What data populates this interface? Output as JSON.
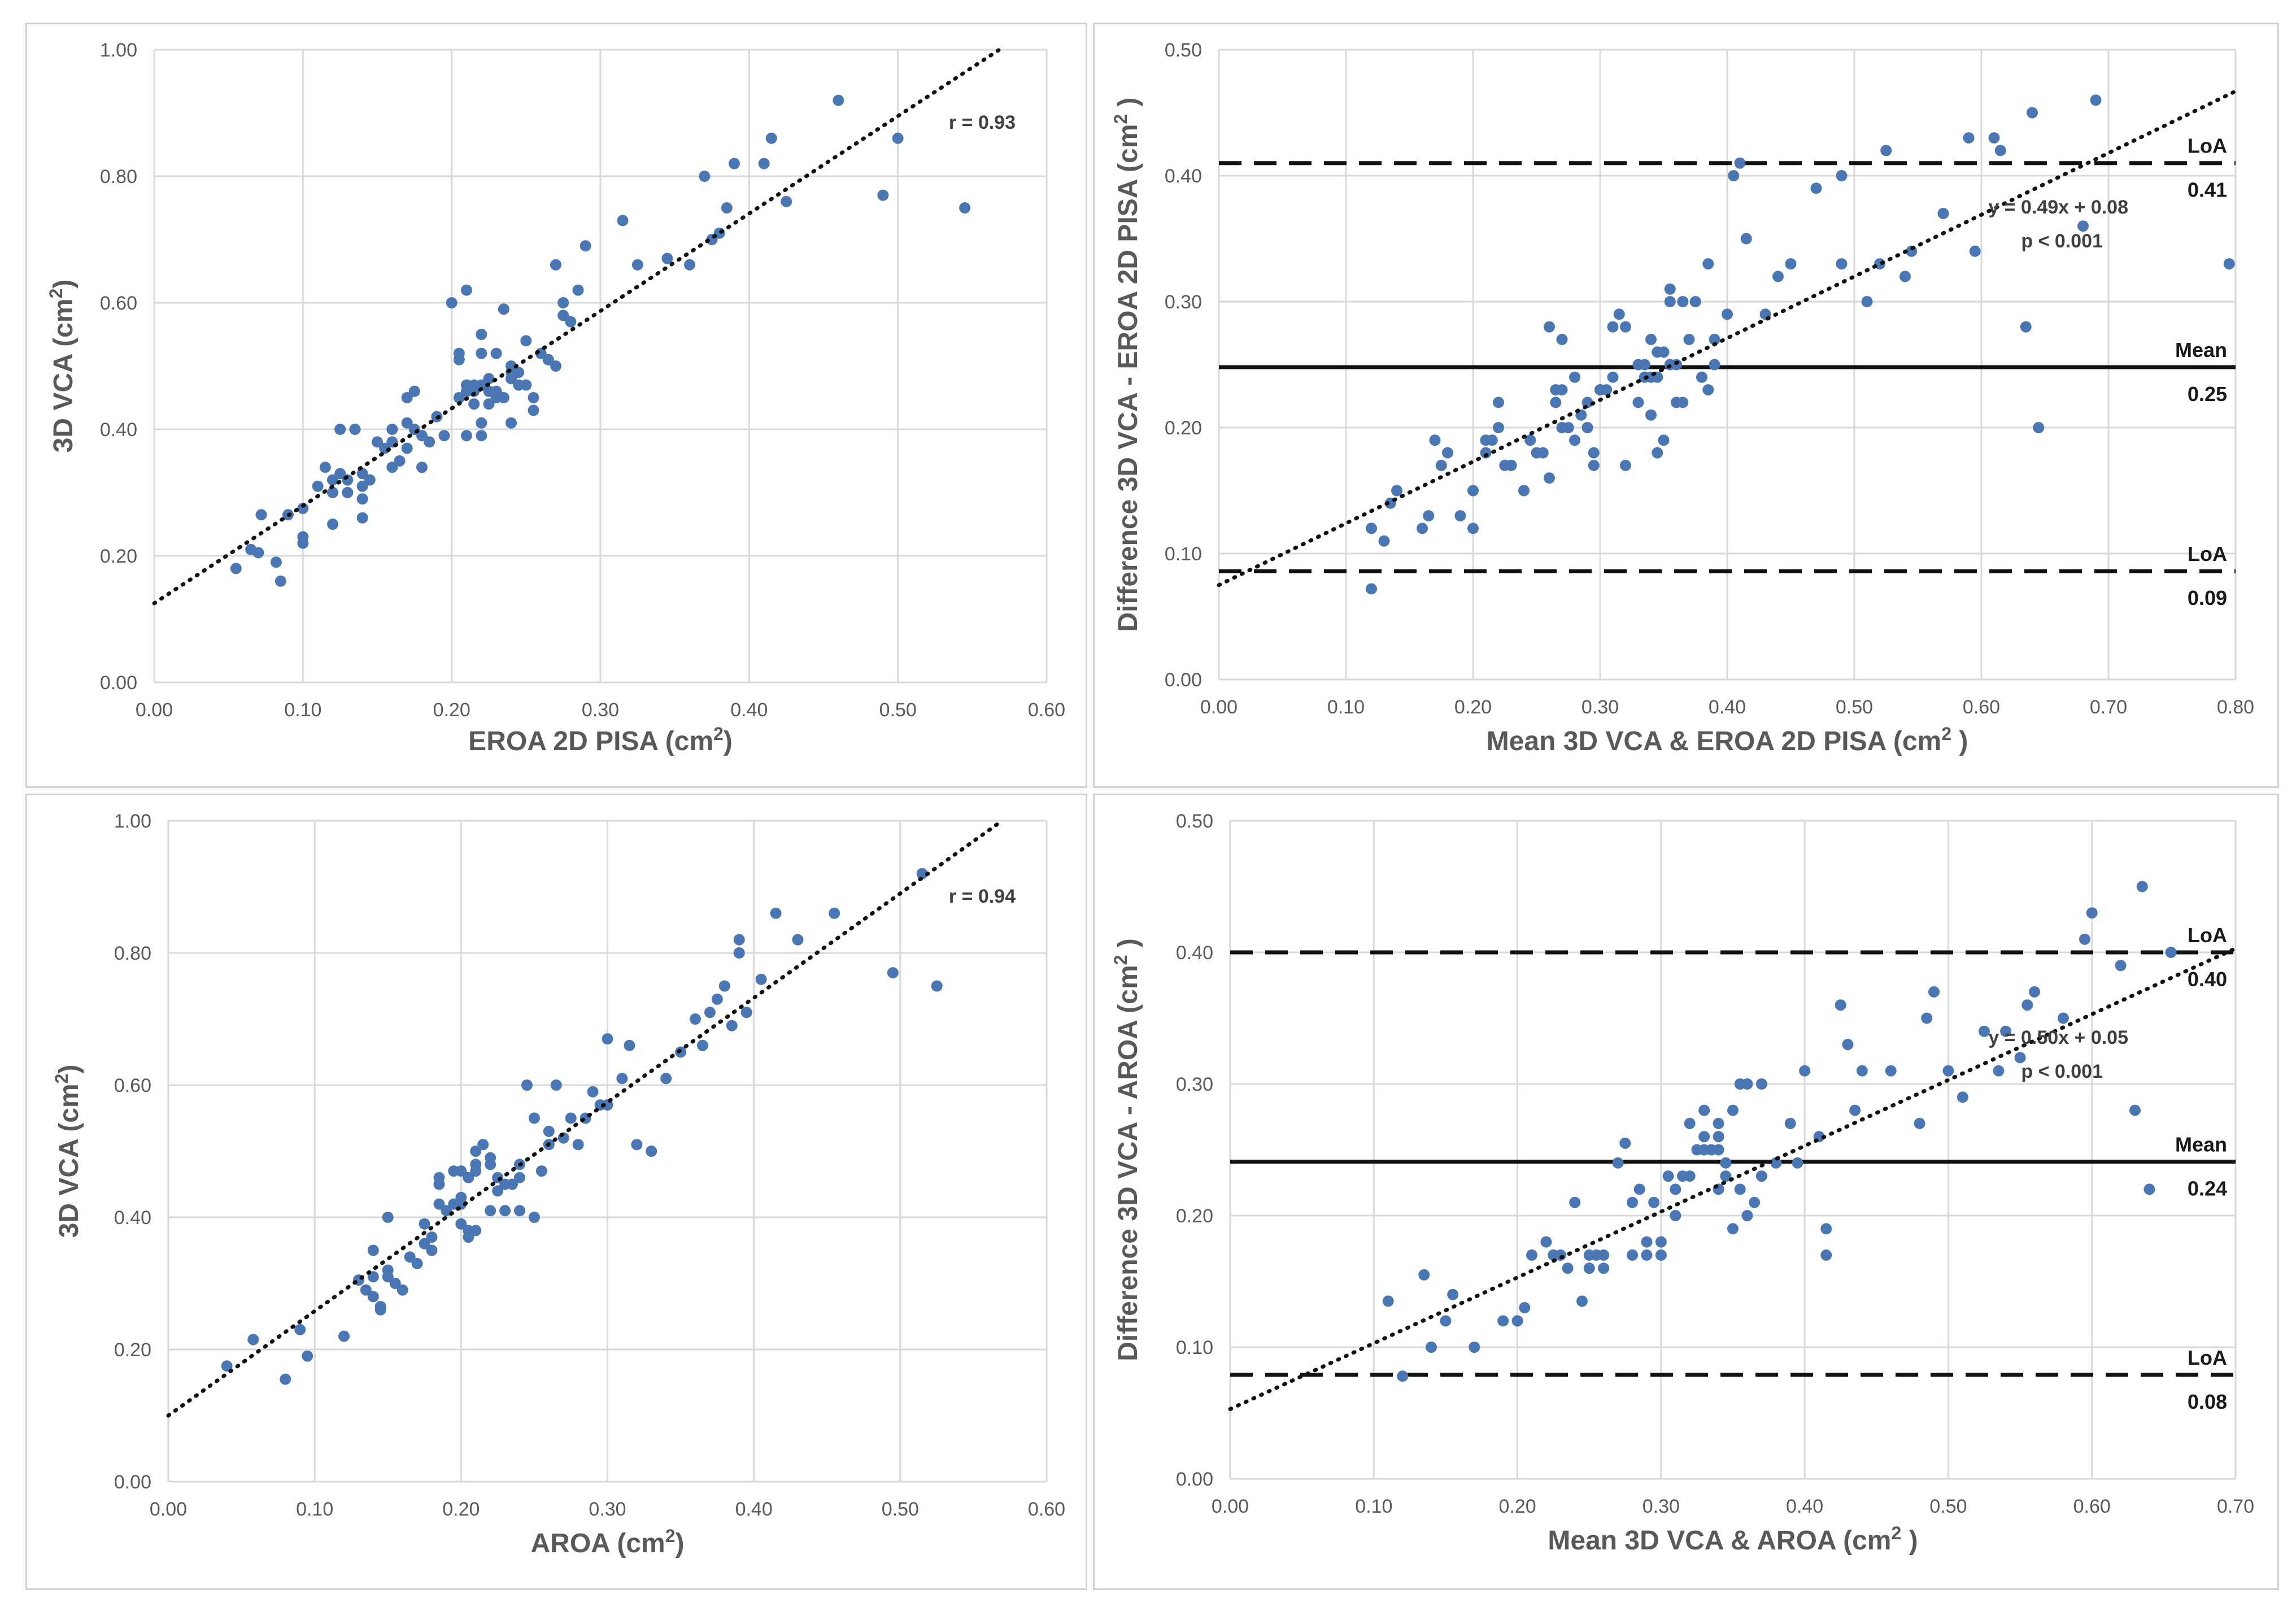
{
  "chart_data": [
    {
      "type": "scatter",
      "id": "p1",
      "xlabel": "EROA 2D PISA (cm",
      "ylabel": "3D VCA (cm",
      "unit_sup": "2",
      "unit_close": ")",
      "xlim": [
        0,
        0.6
      ],
      "ylim": [
        0,
        1.0
      ],
      "xticks": [
        "0.00",
        "0.10",
        "0.20",
        "0.30",
        "0.40",
        "0.50",
        "0.60"
      ],
      "yticks": [
        "0.00",
        "0.20",
        "0.40",
        "0.60",
        "0.80",
        "1.00"
      ],
      "annotation": "r = 0.93",
      "trendline": {
        "intercept": 0.125,
        "slope": 1.54
      },
      "x": [
        0.055,
        0.065,
        0.07,
        0.072,
        0.082,
        0.085,
        0.09,
        0.1,
        0.1,
        0.1,
        0.115,
        0.12,
        0.12,
        0.125,
        0.13,
        0.135,
        0.14,
        0.14,
        0.14,
        0.14,
        0.145,
        0.15,
        0.155,
        0.16,
        0.16,
        0.165,
        0.17,
        0.17,
        0.175,
        0.175,
        0.18,
        0.18,
        0.19,
        0.2,
        0.205,
        0.205,
        0.21,
        0.21,
        0.21,
        0.21,
        0.215,
        0.215,
        0.22,
        0.22,
        0.22,
        0.22,
        0.225,
        0.225,
        0.23,
        0.23,
        0.235,
        0.235,
        0.24,
        0.24,
        0.245,
        0.25,
        0.25,
        0.255,
        0.26,
        0.265,
        0.27,
        0.27,
        0.275,
        0.28,
        0.285,
        0.29,
        0.315,
        0.325,
        0.345,
        0.36,
        0.37,
        0.375,
        0.38,
        0.385,
        0.39,
        0.41,
        0.415,
        0.425,
        0.46,
        0.49,
        0.5,
        0.545,
        0.215,
        0.225,
        0.245,
        0.23,
        0.24,
        0.205,
        0.265,
        0.275,
        0.185,
        0.17,
        0.16,
        0.13,
        0.125,
        0.12,
        0.11,
        0.22,
        0.255,
        0.21,
        0.195,
        0.24
      ],
      "y": [
        0.18,
        0.21,
        0.205,
        0.265,
        0.19,
        0.16,
        0.265,
        0.22,
        0.275,
        0.23,
        0.34,
        0.25,
        0.3,
        0.4,
        0.3,
        0.4,
        0.26,
        0.31,
        0.29,
        0.33,
        0.32,
        0.38,
        0.37,
        0.34,
        0.4,
        0.35,
        0.37,
        0.45,
        0.46,
        0.4,
        0.39,
        0.34,
        0.42,
        0.6,
        0.51,
        0.45,
        0.62,
        0.47,
        0.46,
        0.39,
        0.44,
        0.47,
        0.52,
        0.47,
        0.41,
        0.55,
        0.44,
        0.48,
        0.52,
        0.45,
        0.45,
        0.59,
        0.41,
        0.5,
        0.49,
        0.54,
        0.47,
        0.43,
        0.52,
        0.51,
        0.66,
        0.5,
        0.6,
        0.57,
        0.62,
        0.69,
        0.73,
        0.66,
        0.67,
        0.66,
        0.8,
        0.7,
        0.71,
        0.75,
        0.82,
        0.82,
        0.86,
        0.76,
        0.92,
        0.77,
        0.86,
        0.75,
        0.46,
        0.46,
        0.47,
        0.46,
        0.48,
        0.52,
        0.51,
        0.58,
        0.38,
        0.41,
        0.38,
        0.32,
        0.33,
        0.32,
        0.31,
        0.39,
        0.45,
        0.47,
        0.39,
        0.49
      ]
    },
    {
      "type": "scatter",
      "id": "p2",
      "xlabel": "Mean 3D VCA & EROA 2D PISA (cm",
      "ylabel": "Difference 3D VCA - EROA 2D PISA (cm",
      "unit_sup": "2",
      "unit_close": " )",
      "xlim": [
        0,
        0.8
      ],
      "ylim": [
        0,
        0.5
      ],
      "xticks": [
        "0.00",
        "0.10",
        "0.20",
        "0.30",
        "0.40",
        "0.50",
        "0.60",
        "0.70",
        "0.80"
      ],
      "yticks": [
        "0.00",
        "0.10",
        "0.20",
        "0.30",
        "0.40",
        "0.50"
      ],
      "annotation": "y = 0.49x + 0.08",
      "annotation2": "p < 0.001",
      "trendline": {
        "intercept": 0.075,
        "slope": 0.49
      },
      "lines": [
        {
          "name": "LoA",
          "value": 0.41,
          "label": "0.41",
          "style": "dashed"
        },
        {
          "name": "Mean",
          "value": 0.248,
          "label": "0.25",
          "style": "solid"
        },
        {
          "name": "LoA",
          "value": 0.086,
          "label": "0.09",
          "style": "dashed"
        }
      ],
      "x": [
        0.12,
        0.13,
        0.135,
        0.14,
        0.16,
        0.17,
        0.18,
        0.19,
        0.2,
        0.21,
        0.21,
        0.22,
        0.22,
        0.225,
        0.23,
        0.24,
        0.25,
        0.255,
        0.26,
        0.265,
        0.27,
        0.27,
        0.275,
        0.28,
        0.285,
        0.29,
        0.29,
        0.295,
        0.3,
        0.305,
        0.31,
        0.315,
        0.32,
        0.33,
        0.33,
        0.335,
        0.34,
        0.34,
        0.34,
        0.345,
        0.345,
        0.35,
        0.35,
        0.355,
        0.355,
        0.36,
        0.36,
        0.365,
        0.37,
        0.375,
        0.38,
        0.385,
        0.39,
        0.39,
        0.4,
        0.405,
        0.41,
        0.415,
        0.43,
        0.44,
        0.45,
        0.47,
        0.49,
        0.49,
        0.51,
        0.52,
        0.525,
        0.54,
        0.545,
        0.57,
        0.59,
        0.595,
        0.61,
        0.615,
        0.635,
        0.64,
        0.645,
        0.68,
        0.69,
        0.795,
        0.12,
        0.165,
        0.175,
        0.2,
        0.215,
        0.23,
        0.245,
        0.26,
        0.265,
        0.28,
        0.295,
        0.31,
        0.32,
        0.335,
        0.345,
        0.355,
        0.365,
        0.385,
        0.27,
        0.3
      ],
      "y": [
        0.072,
        0.11,
        0.14,
        0.15,
        0.12,
        0.19,
        0.18,
        0.13,
        0.12,
        0.19,
        0.18,
        0.22,
        0.2,
        0.17,
        0.17,
        0.15,
        0.18,
        0.18,
        0.28,
        0.22,
        0.27,
        0.23,
        0.2,
        0.24,
        0.21,
        0.2,
        0.22,
        0.18,
        0.23,
        0.23,
        0.28,
        0.29,
        0.17,
        0.25,
        0.22,
        0.25,
        0.24,
        0.21,
        0.27,
        0.18,
        0.24,
        0.19,
        0.26,
        0.31,
        0.3,
        0.22,
        0.25,
        0.3,
        0.27,
        0.3,
        0.24,
        0.33,
        0.25,
        0.27,
        0.29,
        0.4,
        0.41,
        0.35,
        0.29,
        0.32,
        0.33,
        0.39,
        0.4,
        0.33,
        0.3,
        0.33,
        0.42,
        0.32,
        0.34,
        0.37,
        0.43,
        0.34,
        0.43,
        0.42,
        0.28,
        0.45,
        0.2,
        0.36,
        0.46,
        0.33,
        0.12,
        0.13,
        0.17,
        0.15,
        0.19,
        0.17,
        0.19,
        0.16,
        0.23,
        0.19,
        0.17,
        0.24,
        0.28,
        0.24,
        0.26,
        0.25,
        0.22,
        0.23,
        0.2,
        0.23
      ]
    },
    {
      "type": "scatter",
      "id": "p3",
      "xlabel": "AROA (cm",
      "ylabel": "3D VCA (cm",
      "unit_sup": "2",
      "unit_close": ")",
      "xlim": [
        0,
        0.6
      ],
      "ylim": [
        0,
        1.0
      ],
      "xticks": [
        "0.00",
        "0.10",
        "0.20",
        "0.30",
        "0.40",
        "0.50",
        "0.60"
      ],
      "yticks": [
        "0.00",
        "0.20",
        "0.40",
        "0.60",
        "0.80",
        "1.00"
      ],
      "annotation": "r = 0.94",
      "trendline": {
        "intercept": 0.1,
        "slope": 1.58
      },
      "x": [
        0.04,
        0.058,
        0.08,
        0.09,
        0.095,
        0.12,
        0.13,
        0.14,
        0.14,
        0.145,
        0.145,
        0.15,
        0.15,
        0.155,
        0.16,
        0.165,
        0.175,
        0.175,
        0.18,
        0.185,
        0.185,
        0.19,
        0.195,
        0.2,
        0.2,
        0.205,
        0.205,
        0.21,
        0.21,
        0.215,
        0.22,
        0.22,
        0.225,
        0.23,
        0.235,
        0.24,
        0.24,
        0.245,
        0.25,
        0.255,
        0.26,
        0.265,
        0.27,
        0.28,
        0.29,
        0.295,
        0.3,
        0.31,
        0.315,
        0.32,
        0.33,
        0.34,
        0.35,
        0.36,
        0.365,
        0.37,
        0.375,
        0.38,
        0.385,
        0.39,
        0.39,
        0.395,
        0.405,
        0.415,
        0.43,
        0.455,
        0.495,
        0.515,
        0.525,
        0.24,
        0.225,
        0.21,
        0.2,
        0.205,
        0.195,
        0.185,
        0.18,
        0.17,
        0.15,
        0.14,
        0.135,
        0.2,
        0.22,
        0.21,
        0.23,
        0.25,
        0.26,
        0.275,
        0.285,
        0.3
      ],
      "y": [
        0.175,
        0.215,
        0.155,
        0.23,
        0.19,
        0.22,
        0.305,
        0.35,
        0.28,
        0.265,
        0.26,
        0.4,
        0.31,
        0.3,
        0.29,
        0.34,
        0.36,
        0.39,
        0.35,
        0.46,
        0.42,
        0.41,
        0.42,
        0.47,
        0.39,
        0.37,
        0.38,
        0.47,
        0.5,
        0.51,
        0.41,
        0.49,
        0.46,
        0.45,
        0.45,
        0.48,
        0.41,
        0.6,
        0.55,
        0.47,
        0.51,
        0.6,
        0.52,
        0.51,
        0.59,
        0.57,
        0.67,
        0.61,
        0.66,
        0.51,
        0.5,
        0.61,
        0.65,
        0.7,
        0.66,
        0.71,
        0.73,
        0.75,
        0.69,
        0.82,
        0.8,
        0.71,
        0.76,
        0.86,
        0.82,
        0.86,
        0.77,
        0.92,
        0.75,
        0.46,
        0.44,
        0.38,
        0.43,
        0.46,
        0.47,
        0.45,
        0.37,
        0.33,
        0.32,
        0.31,
        0.29,
        0.42,
        0.48,
        0.48,
        0.41,
        0.4,
        0.53,
        0.55,
        0.55,
        0.57
      ]
    },
    {
      "type": "scatter",
      "id": "p4",
      "xlabel": "Mean 3D VCA & AROA (cm",
      "ylabel": "Difference 3D VCA - AROA (cm",
      "unit_sup": "2",
      "unit_close": " )",
      "xlim": [
        0,
        0.7
      ],
      "ylim": [
        0,
        0.5
      ],
      "xticks": [
        "0.00",
        "0.10",
        "0.20",
        "0.30",
        "0.40",
        "0.50",
        "0.60",
        "0.70"
      ],
      "yticks": [
        "0.00",
        "0.10",
        "0.20",
        "0.30",
        "0.40",
        "0.50"
      ],
      "annotation": "y = 0.50x + 0.05",
      "annotation2": "p < 0.001",
      "trendline": {
        "intercept": 0.053,
        "slope": 0.5
      },
      "lines": [
        {
          "name": "LoA",
          "value": 0.4,
          "label": "0.40",
          "style": "dashed"
        },
        {
          "name": "Mean",
          "value": 0.241,
          "label": "0.24",
          "style": "solid"
        },
        {
          "name": "LoA",
          "value": 0.079,
          "label": "0.08",
          "style": "dashed"
        }
      ],
      "x": [
        0.11,
        0.12,
        0.135,
        0.14,
        0.15,
        0.155,
        0.17,
        0.19,
        0.2,
        0.205,
        0.21,
        0.22,
        0.225,
        0.23,
        0.235,
        0.24,
        0.245,
        0.25,
        0.255,
        0.26,
        0.27,
        0.275,
        0.28,
        0.285,
        0.29,
        0.295,
        0.3,
        0.305,
        0.31,
        0.315,
        0.32,
        0.325,
        0.33,
        0.335,
        0.34,
        0.34,
        0.345,
        0.35,
        0.355,
        0.36,
        0.365,
        0.37,
        0.38,
        0.39,
        0.395,
        0.4,
        0.41,
        0.415,
        0.415,
        0.425,
        0.43,
        0.435,
        0.44,
        0.46,
        0.48,
        0.485,
        0.49,
        0.5,
        0.51,
        0.525,
        0.535,
        0.54,
        0.55,
        0.555,
        0.56,
        0.58,
        0.595,
        0.6,
        0.62,
        0.63,
        0.635,
        0.64,
        0.655,
        0.31,
        0.32,
        0.33,
        0.34,
        0.345,
        0.35,
        0.36,
        0.37,
        0.29,
        0.3,
        0.28,
        0.26,
        0.25,
        0.23,
        0.33,
        0.34,
        0.355
      ],
      "y": [
        0.135,
        0.078,
        0.155,
        0.1,
        0.12,
        0.14,
        0.1,
        0.12,
        0.12,
        0.13,
        0.17,
        0.18,
        0.17,
        0.17,
        0.16,
        0.21,
        0.135,
        0.17,
        0.17,
        0.17,
        0.24,
        0.255,
        0.21,
        0.22,
        0.17,
        0.21,
        0.17,
        0.23,
        0.22,
        0.23,
        0.27,
        0.25,
        0.28,
        0.25,
        0.27,
        0.22,
        0.23,
        0.28,
        0.3,
        0.3,
        0.21,
        0.3,
        0.24,
        0.27,
        0.24,
        0.31,
        0.26,
        0.17,
        0.19,
        0.36,
        0.33,
        0.28,
        0.31,
        0.31,
        0.27,
        0.35,
        0.37,
        0.31,
        0.29,
        0.34,
        0.31,
        0.34,
        0.32,
        0.36,
        0.37,
        0.35,
        0.41,
        0.43,
        0.39,
        0.28,
        0.45,
        0.22,
        0.4,
        0.2,
        0.23,
        0.26,
        0.26,
        0.24,
        0.19,
        0.2,
        0.23,
        0.18,
        0.18,
        0.17,
        0.16,
        0.16,
        0.17,
        0.25,
        0.25,
        0.22
      ]
    }
  ]
}
